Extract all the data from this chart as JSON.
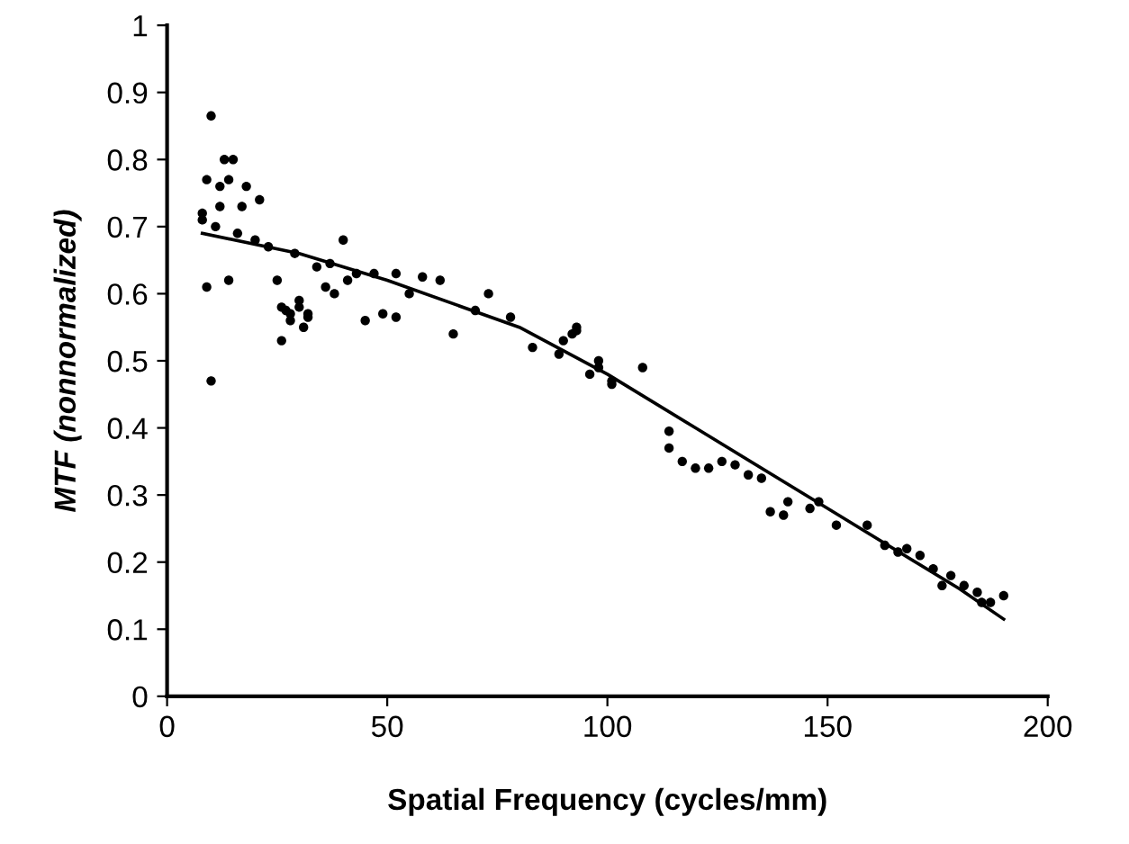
{
  "chart_data": {
    "type": "scatter",
    "xlabel": "Spatial Frequency (cycles/mm)",
    "ylabel": "MTF (nonnormalized)",
    "xlim": [
      0,
      200
    ],
    "xticks": [
      0,
      50,
      100,
      150,
      200
    ],
    "ylim": [
      0,
      1
    ],
    "yticks": [
      0,
      0.1,
      0.2,
      0.3,
      0.4,
      0.5,
      0.6,
      0.7,
      0.8,
      0.9,
      1
    ],
    "grid": false,
    "legend": false,
    "series": [
      {
        "color": "#000000",
        "marker": "circle",
        "x": [
          8,
          8,
          9,
          9,
          10,
          10,
          11,
          12,
          12,
          13,
          14,
          14,
          15,
          16,
          17,
          18,
          20,
          21,
          23,
          25,
          26,
          26,
          27,
          28,
          28,
          29,
          30,
          30,
          31,
          32,
          32,
          34,
          36,
          37,
          38,
          40,
          41,
          43,
          45,
          47,
          49,
          52,
          52,
          55,
          58,
          62,
          65,
          70,
          73,
          78,
          83,
          89,
          90,
          92,
          93,
          93,
          96,
          98,
          98,
          101,
          101,
          108,
          114,
          114,
          117,
          120,
          123,
          126,
          129,
          132,
          135,
          137,
          140,
          141,
          146,
          148,
          152,
          159,
          163,
          166,
          168,
          171,
          174,
          176,
          178,
          181,
          184,
          185,
          187,
          190
        ],
        "values": [
          0.72,
          0.71,
          0.77,
          0.61,
          0.865,
          0.47,
          0.7,
          0.76,
          0.73,
          0.8,
          0.77,
          0.62,
          0.8,
          0.69,
          0.73,
          0.76,
          0.68,
          0.74,
          0.67,
          0.62,
          0.58,
          0.53,
          0.575,
          0.56,
          0.57,
          0.66,
          0.58,
          0.59,
          0.55,
          0.57,
          0.565,
          0.64,
          0.61,
          0.645,
          0.6,
          0.68,
          0.62,
          0.63,
          0.56,
          0.63,
          0.57,
          0.63,
          0.565,
          0.6,
          0.625,
          0.62,
          0.54,
          0.575,
          0.6,
          0.565,
          0.52,
          0.51,
          0.53,
          0.54,
          0.55,
          0.545,
          0.48,
          0.5,
          0.49,
          0.47,
          0.465,
          0.49,
          0.395,
          0.37,
          0.35,
          0.34,
          0.34,
          0.35,
          0.345,
          0.33,
          0.325,
          0.275,
          0.27,
          0.29,
          0.28,
          0.29,
          0.255,
          0.255,
          0.225,
          0.215,
          0.22,
          0.21,
          0.19,
          0.165,
          0.18,
          0.165,
          0.155,
          0.14,
          0.14,
          0.15
        ]
      },
      {
        "type": "line",
        "color": "#000000",
        "marker": "none",
        "line_style": "solid",
        "x": [
          8,
          30,
          50,
          80,
          100,
          120,
          150,
          180,
          190
        ],
        "values": [
          0.69,
          0.66,
          0.62,
          0.55,
          0.48,
          0.4,
          0.28,
          0.16,
          0.115
        ]
      }
    ]
  }
}
